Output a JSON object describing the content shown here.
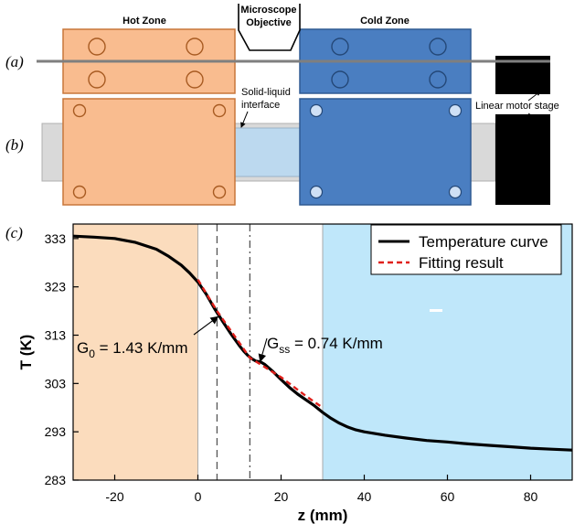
{
  "panel_labels": {
    "a": "(a)",
    "b": "(b)",
    "c": "(c)"
  },
  "schematic": {
    "hot_zone": "Hot Zone",
    "cold_zone": "Cold Zone",
    "microscope_line1": "Microscope",
    "microscope_line2": "Objective",
    "interface_line1": "Solid-liquid",
    "interface_line2": "interface",
    "linear_stage": "Linear motor stage",
    "colors": {
      "hot": "#f9bc8f",
      "hot_edge": "#c8763a",
      "cold": "#4a7ec1",
      "cold_edge": "#2f5a92",
      "motor": "#000000",
      "sample": "#d9d9d9",
      "liquid": "#bcd9ef"
    }
  },
  "chart_data": {
    "type": "line",
    "xlabel": "z (mm)",
    "ylabel": "T (K)",
    "xlim": [
      -30,
      90
    ],
    "ylim": [
      283,
      336
    ],
    "xticks": [
      -20,
      0,
      20,
      40,
      60,
      80
    ],
    "yticks": [
      283,
      293,
      303,
      313,
      323,
      333
    ],
    "series": [
      {
        "name": "Temperature curve",
        "color": "#000000",
        "style": "solid",
        "x": [
          -30,
          -25,
          -20,
          -15,
          -10,
          -7,
          -4,
          -2,
          0,
          2,
          4,
          6,
          8,
          10,
          11,
          12,
          13,
          14,
          15,
          16,
          18,
          20,
          22,
          24,
          26,
          28,
          30,
          32,
          34,
          36,
          38,
          40,
          45,
          50,
          55,
          60,
          65,
          70,
          75,
          80,
          85,
          90
        ],
        "y": [
          333.5,
          333.3,
          333.0,
          332.2,
          330.8,
          329.3,
          327.5,
          325.9,
          324.0,
          321.5,
          318.5,
          315.8,
          313.2,
          310.8,
          309.7,
          308.8,
          308.1,
          307.6,
          307.5,
          307.0,
          305.5,
          303.8,
          302.2,
          300.8,
          299.6,
          298.4,
          297.0,
          295.8,
          294.8,
          294.0,
          293.4,
          293.0,
          292.3,
          291.7,
          291.2,
          290.9,
          290.5,
          290.2,
          289.9,
          289.6,
          289.4,
          289.2
        ]
      },
      {
        "name": "Fitting result",
        "color": "#e0201b",
        "style": "dashed",
        "x": [
          0,
          4.6,
          12.5,
          20,
          26,
          30
        ],
        "y": [
          324.5,
          318.0,
          308.3,
          304.3,
          300.4,
          298.0
        ]
      }
    ],
    "regions": [
      {
        "x": [
          -30,
          0
        ],
        "color": "#fbdcbd"
      },
      {
        "x": [
          30,
          90
        ],
        "color": "#bfe7fa"
      }
    ],
    "vlines": [
      {
        "x": 4.6,
        "style": "dashed"
      },
      {
        "x": 12.5,
        "style": "dashdot"
      }
    ],
    "annotations": [
      {
        "text_main": "G",
        "text_sub": "0",
        "text_rest": " = 1.43 K/mm",
        "arrow_to": [
          4.8,
          316.8
        ]
      },
      {
        "text_main": "G",
        "text_sub": "ss",
        "text_rest": " = 0.74 K/mm",
        "arrow_to": [
          15.0,
          307.6
        ]
      }
    ],
    "legend_position": "top-right"
  }
}
